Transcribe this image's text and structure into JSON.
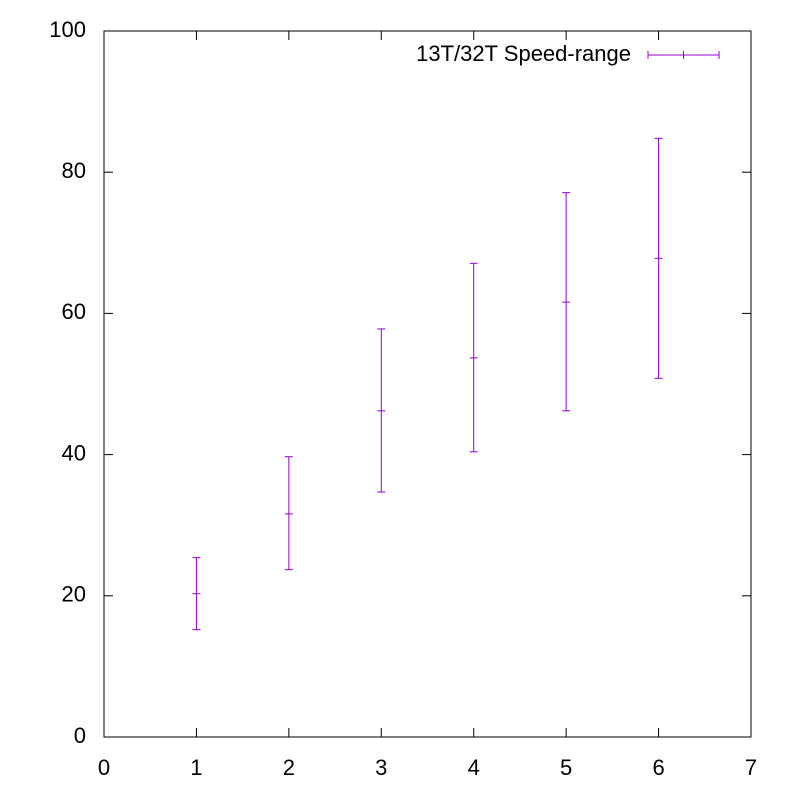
{
  "chart_data": {
    "type": "errorbar",
    "x": [
      1,
      2,
      3,
      4,
      5,
      6
    ],
    "series": [
      {
        "name": "13T/32T Speed-range",
        "color": "#9400d3",
        "values": [
          20.3,
          31.6,
          46.2,
          53.7,
          61.6,
          67.8
        ],
        "low": [
          15.2,
          23.7,
          34.7,
          40.4,
          46.2,
          50.8
        ],
        "high": [
          25.4,
          39.7,
          57.8,
          67.1,
          77.1,
          84.8
        ]
      }
    ],
    "xlim": [
      0,
      7
    ],
    "xticks": [
      0,
      1,
      2,
      3,
      4,
      5,
      6,
      7
    ],
    "ylim": [
      0,
      100
    ],
    "yticks": [
      0,
      20,
      40,
      60,
      80,
      100
    ],
    "legend": "top-right",
    "grid": false
  }
}
